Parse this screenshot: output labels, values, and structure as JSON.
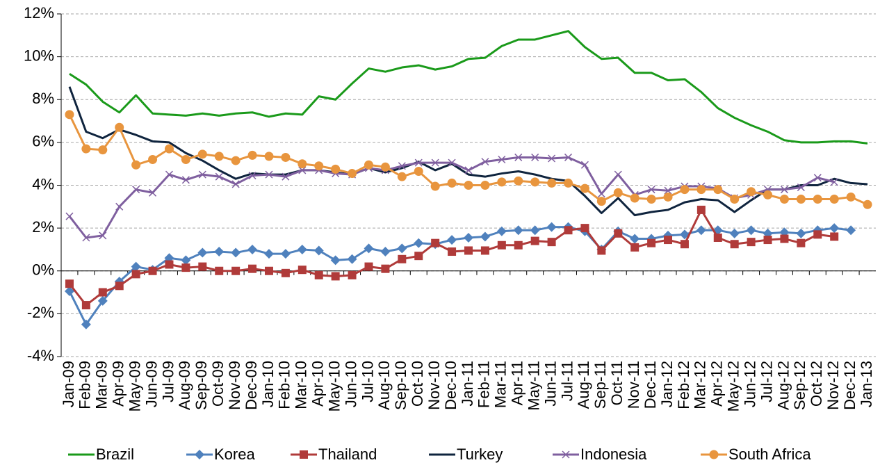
{
  "chart_data": {
    "type": "line",
    "categories": [
      "Jan-09",
      "Feb-09",
      "Mar-09",
      "Apr-09",
      "May-09",
      "Jun-09",
      "Jul-09",
      "Aug-09",
      "Sep-09",
      "Oct-09",
      "Nov-09",
      "Dec-09",
      "Jan-10",
      "Feb-10",
      "Mar-10",
      "Apr-10",
      "May-10",
      "Jun-10",
      "Jul-10",
      "Aug-10",
      "Sep-10",
      "Oct-10",
      "Nov-10",
      "Dec-10",
      "Jan-11",
      "Feb-11",
      "Mar-11",
      "Apr-11",
      "May-11",
      "Jun-11",
      "Jul-11",
      "Aug-11",
      "Sep-11",
      "Oct-11",
      "Nov-11",
      "Dec-11",
      "Jan-12",
      "Feb-12",
      "Mar-12",
      "Apr-12",
      "May-12",
      "Jun-12",
      "Jul-12",
      "Aug-12",
      "Sep-12",
      "Oct-12",
      "Nov-12",
      "Dec-12",
      "Jan-13"
    ],
    "series": [
      {
        "name": "Brazil",
        "color": "#1a9a1a",
        "marker": "none",
        "values": [
          9.2,
          8.7,
          7.9,
          7.4,
          8.2,
          7.35,
          7.3,
          7.25,
          7.35,
          7.25,
          7.35,
          7.4,
          7.2,
          7.35,
          7.3,
          8.15,
          8.0,
          8.75,
          9.45,
          9.3,
          9.5,
          9.6,
          9.4,
          9.55,
          9.9,
          9.95,
          10.5,
          10.8,
          10.8,
          11.0,
          11.2,
          10.45,
          9.9,
          9.95,
          9.25,
          9.25,
          8.9,
          8.95,
          8.35,
          7.6,
          7.15,
          6.8,
          6.5,
          6.1,
          6.0,
          6.0,
          6.05,
          6.05,
          5.95
        ]
      },
      {
        "name": "Korea",
        "color": "#4f81bd",
        "marker": "diamond",
        "values": [
          -0.95,
          -2.5,
          -1.4,
          -0.5,
          0.2,
          0.05,
          0.6,
          0.5,
          0.85,
          0.9,
          0.85,
          1.0,
          0.8,
          0.8,
          1.0,
          0.95,
          0.5,
          0.55,
          1.05,
          0.9,
          1.05,
          1.3,
          1.25,
          1.45,
          1.55,
          1.6,
          1.85,
          1.9,
          1.9,
          2.05,
          2.05,
          1.85,
          1.0,
          1.85,
          1.5,
          1.5,
          1.65,
          1.7,
          1.9,
          1.9,
          1.75,
          1.9,
          1.75,
          1.8,
          1.75,
          1.9,
          2.0,
          1.9,
          null
        ]
      },
      {
        "name": "Thailand",
        "color": "#b03b3a",
        "marker": "square",
        "values": [
          -0.6,
          -1.6,
          -1.0,
          -0.7,
          -0.15,
          0.0,
          0.3,
          0.15,
          0.2,
          0.0,
          0.0,
          0.1,
          0.0,
          -0.1,
          0.05,
          -0.2,
          -0.25,
          -0.2,
          0.2,
          0.1,
          0.55,
          0.7,
          1.3,
          0.9,
          0.95,
          0.95,
          1.2,
          1.2,
          1.4,
          1.35,
          1.9,
          2.0,
          0.95,
          1.75,
          1.1,
          1.3,
          1.45,
          1.25,
          2.85,
          1.55,
          1.25,
          1.35,
          1.45,
          1.5,
          1.3,
          1.7,
          1.6,
          null,
          null
        ]
      },
      {
        "name": "Turkey",
        "color": "#0f243e",
        "marker": "none",
        "values": [
          8.6,
          6.5,
          6.2,
          6.6,
          6.35,
          6.05,
          6.0,
          5.5,
          5.15,
          4.7,
          4.3,
          4.55,
          4.5,
          4.5,
          4.7,
          4.7,
          4.6,
          4.5,
          4.8,
          4.6,
          4.8,
          5.1,
          4.7,
          5.0,
          4.5,
          4.4,
          4.55,
          4.65,
          4.5,
          4.3,
          4.2,
          3.5,
          2.7,
          3.4,
          2.6,
          2.75,
          2.85,
          3.2,
          3.35,
          3.3,
          2.75,
          3.3,
          3.8,
          3.8,
          4.0,
          4.0,
          4.3,
          4.1,
          4.05
        ]
      },
      {
        "name": "Indonesia",
        "color": "#7f5f9f",
        "marker": "x",
        "values": [
          2.55,
          1.55,
          1.65,
          3.0,
          3.8,
          3.65,
          4.5,
          4.25,
          4.5,
          4.4,
          4.05,
          4.45,
          4.5,
          4.4,
          4.7,
          4.7,
          4.55,
          4.5,
          4.8,
          4.7,
          4.9,
          5.05,
          5.05,
          5.05,
          4.7,
          5.1,
          5.2,
          5.3,
          5.3,
          5.25,
          5.3,
          4.95,
          3.6,
          4.5,
          3.55,
          3.8,
          3.75,
          3.95,
          3.95,
          3.85,
          3.4,
          3.55,
          3.8,
          3.8,
          3.9,
          4.35,
          4.15,
          null,
          null
        ]
      },
      {
        "name": "South Africa",
        "color": "#e8953e",
        "marker": "circle",
        "values": [
          7.3,
          5.7,
          5.65,
          6.7,
          4.95,
          5.2,
          5.7,
          5.2,
          5.45,
          5.35,
          5.15,
          5.4,
          5.35,
          5.3,
          5.0,
          4.9,
          4.75,
          4.55,
          4.95,
          4.85,
          4.4,
          4.65,
          3.95,
          4.1,
          4.0,
          4.0,
          4.15,
          4.2,
          4.15,
          4.1,
          4.1,
          3.85,
          3.25,
          3.65,
          3.4,
          3.35,
          3.45,
          3.8,
          3.8,
          3.8,
          3.35,
          3.7,
          3.55,
          3.35,
          3.35,
          3.35,
          3.35,
          3.45,
          3.1
        ]
      }
    ],
    "ylim": [
      -4,
      12
    ],
    "yticks": [
      {
        "value": -4,
        "label": "-4%"
      },
      {
        "value": -2,
        "label": "-2%"
      },
      {
        "value": 0,
        "label": "0%"
      },
      {
        "value": 2,
        "label": "2%"
      },
      {
        "value": 4,
        "label": "4%"
      },
      {
        "value": 6,
        "label": "6%"
      },
      {
        "value": 8,
        "label": "8%"
      },
      {
        "value": 10,
        "label": "10%"
      },
      {
        "value": 12,
        "label": "12%"
      }
    ],
    "grid": true,
    "legend": "bottom"
  }
}
